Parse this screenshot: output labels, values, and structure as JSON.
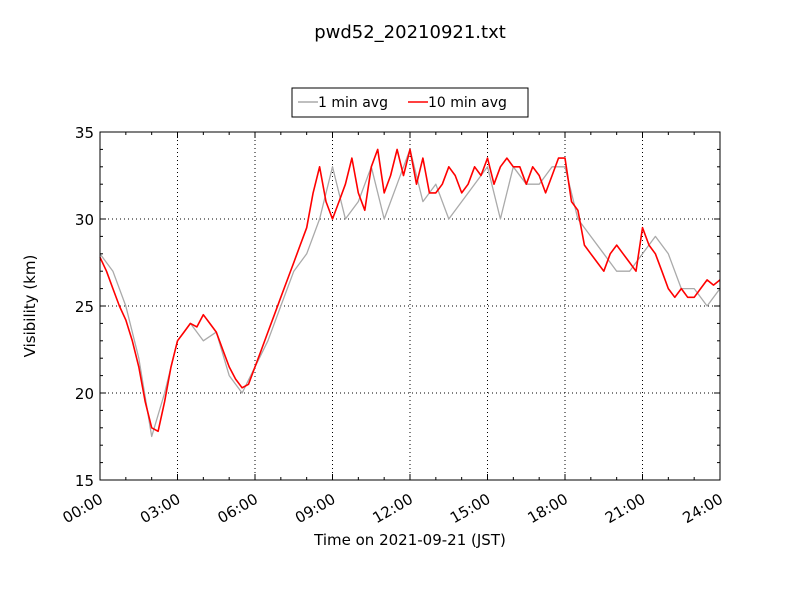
{
  "chart_data": {
    "type": "line",
    "title": "pwd52_20210921.txt",
    "xlabel": "Time on 2021-09-21 (JST)",
    "ylabel": "Visibility (km)",
    "xlim_hours": [
      0,
      24
    ],
    "ylim": [
      15,
      35
    ],
    "x_ticks": [
      "00:00",
      "03:00",
      "06:00",
      "09:00",
      "12:00",
      "15:00",
      "18:00",
      "21:00",
      "24:00"
    ],
    "y_ticks": [
      "15",
      "20",
      "25",
      "30",
      "35"
    ],
    "grid": true,
    "legend_position": "top-center",
    "x_units": "hours",
    "series": [
      {
        "name": "1 min avg",
        "color": "#aaaaaa",
        "x": [
          0,
          0.5,
          1,
          1.5,
          2,
          2.5,
          3,
          3.5,
          4,
          4.5,
          5,
          5.5,
          6,
          6.5,
          7,
          7.5,
          8,
          8.5,
          9,
          9.5,
          10,
          10.5,
          11,
          11.5,
          12,
          12.5,
          13,
          13.5,
          14,
          14.5,
          15,
          15.5,
          16,
          16.5,
          17,
          17.5,
          18,
          18.5,
          19,
          19.5,
          20,
          20.5,
          21,
          21.5,
          22,
          22.5,
          23,
          23.5,
          24
        ],
        "y": [
          28,
          27,
          25,
          22,
          17.5,
          20,
          23,
          24,
          23,
          23.5,
          21,
          20,
          21.5,
          23,
          25,
          27,
          28,
          30,
          33,
          30,
          31,
          33,
          30,
          32,
          34,
          31,
          32,
          30,
          31,
          32,
          33,
          30,
          33,
          32,
          32,
          33,
          33,
          30,
          29,
          28,
          27,
          27,
          28,
          29,
          28,
          26,
          26,
          25,
          26
        ]
      },
      {
        "name": "10 min avg",
        "color": "#ff0000",
        "x": [
          0,
          0.25,
          0.5,
          0.75,
          1,
          1.25,
          1.5,
          1.75,
          2,
          2.25,
          2.5,
          2.75,
          3,
          3.25,
          3.5,
          3.75,
          4,
          4.25,
          4.5,
          4.75,
          5,
          5.25,
          5.5,
          5.75,
          6,
          6.25,
          6.5,
          6.75,
          7,
          7.25,
          7.5,
          7.75,
          8,
          8.25,
          8.5,
          8.75,
          9,
          9.25,
          9.5,
          9.75,
          10,
          10.25,
          10.5,
          10.75,
          11,
          11.25,
          11.5,
          11.75,
          12,
          12.25,
          12.5,
          12.75,
          13,
          13.25,
          13.5,
          13.75,
          14,
          14.25,
          14.5,
          14.75,
          15,
          15.25,
          15.5,
          15.75,
          16,
          16.25,
          16.5,
          16.75,
          17,
          17.25,
          17.5,
          17.75,
          18,
          18.25,
          18.5,
          18.75,
          19,
          19.25,
          19.5,
          19.75,
          20,
          20.25,
          20.5,
          20.75,
          21,
          21.25,
          21.5,
          21.75,
          22,
          22.25,
          22.5,
          22.75,
          23,
          23.25,
          23.5,
          23.75,
          24
        ],
        "y": [
          27.8,
          27,
          26,
          25,
          24.2,
          23,
          21.5,
          19.5,
          18,
          17.8,
          19.5,
          21.5,
          23,
          23.5,
          24,
          23.8,
          24.5,
          24,
          23.5,
          22.5,
          21.5,
          20.8,
          20.3,
          20.5,
          21.5,
          22.5,
          23.5,
          24.5,
          25.5,
          26.5,
          27.5,
          28.5,
          29.5,
          31.5,
          33,
          31,
          30,
          31,
          32,
          33.5,
          31.5,
          30.5,
          33,
          34,
          31.5,
          32.5,
          34,
          32.5,
          34,
          32,
          33.5,
          31.5,
          31.5,
          32,
          33,
          32.5,
          31.5,
          32,
          33,
          32.5,
          33.5,
          32,
          33,
          33.5,
          33,
          33,
          32,
          33,
          32.5,
          31.5,
          32.5,
          33.5,
          33.5,
          31,
          30.5,
          28.5,
          28,
          27.5,
          27,
          28,
          28.5,
          28,
          27.5,
          27,
          29.5,
          28.5,
          28,
          27,
          26,
          25.5,
          26,
          25.5,
          25.5,
          26,
          26.5,
          26.2,
          26.5
        ]
      }
    ]
  }
}
